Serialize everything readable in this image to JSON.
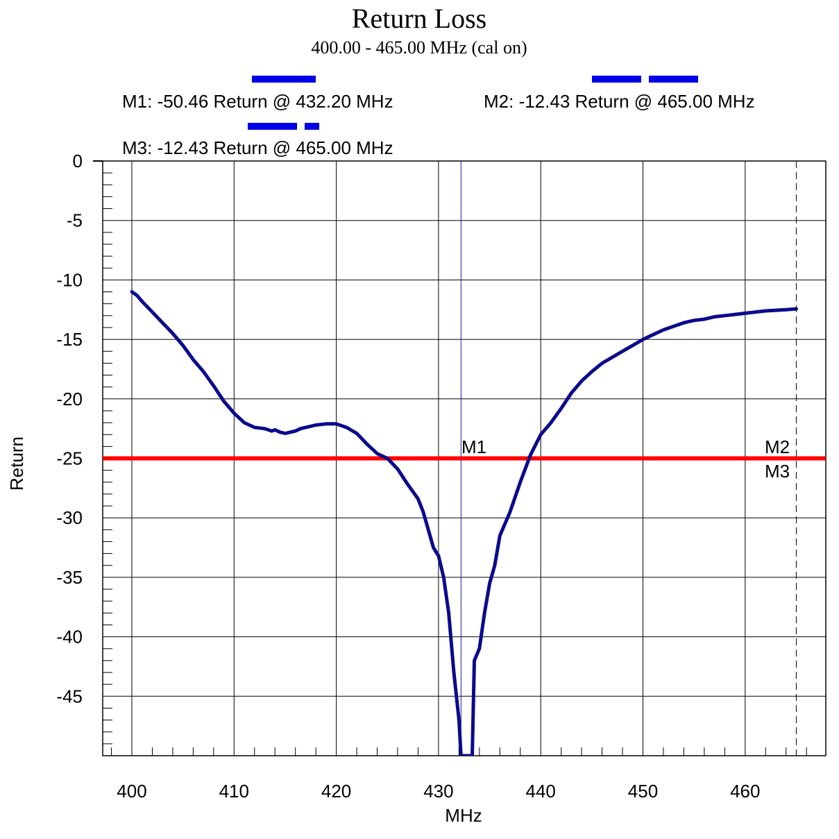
{
  "header": {
    "title": "Return Loss",
    "subtitle": "400.00 - 465.00 MHz (cal on)"
  },
  "markers": {
    "m1_readout": "M1: -50.46 Return @ 432.20 MHz",
    "m2_readout": "M2: -12.43 Return @ 465.00 MHz",
    "m3_readout": "M3: -12.43 Return @ 465.00 MHz",
    "m1_label": "M1",
    "m2_label": "M2",
    "m3_label": "M3"
  },
  "colors": {
    "trace": "#0a0a8c",
    "limit_line": "#ff0000",
    "marker_legend": "#0000e6",
    "grid": "#000000"
  },
  "chart_data": {
    "type": "line",
    "title": "Return Loss",
    "subtitle": "400.00 - 465.00 MHz (cal on)",
    "xlabel": "MHz",
    "ylabel": "Return",
    "xlim": [
      397,
      468
    ],
    "ylim": [
      -50,
      0
    ],
    "x_ticks": [
      400,
      410,
      420,
      430,
      440,
      450,
      460
    ],
    "y_ticks": [
      0,
      -5,
      -10,
      -15,
      -20,
      -25,
      -30,
      -35,
      -40,
      -45
    ],
    "grid": true,
    "limit_line": {
      "y": -25
    },
    "markers": [
      {
        "name": "M1",
        "x": 432.2,
        "y": -50.46
      },
      {
        "name": "M2",
        "x": 465.0,
        "y": -12.43
      },
      {
        "name": "M3",
        "x": 465.0,
        "y": -12.43
      }
    ],
    "series": [
      {
        "x": [
          400,
          400.5,
          401,
          402,
          403,
          404,
          405,
          406,
          407,
          408,
          409,
          410,
          411,
          412,
          413,
          413.7,
          414,
          414.5,
          415,
          415.5,
          416,
          416.5,
          417,
          418,
          419,
          420,
          421,
          422,
          423,
          424,
          425,
          426,
          427,
          428,
          428.5,
          429,
          429.5,
          430,
          430.5,
          431,
          431.5,
          432,
          432.2,
          433.3,
          433.5,
          434,
          434.5,
          435,
          435.5,
          436,
          437,
          438,
          439,
          440,
          441,
          442,
          443,
          444,
          445,
          446,
          447,
          448,
          449,
          450,
          451,
          452,
          453,
          454,
          455,
          456,
          457,
          458,
          459,
          460,
          461,
          462,
          463,
          464,
          465
        ],
        "y": [
          -11.0,
          -11.3,
          -11.8,
          -12.7,
          -13.6,
          -14.5,
          -15.5,
          -16.7,
          -17.7,
          -18.9,
          -20.2,
          -21.2,
          -22.0,
          -22.4,
          -22.5,
          -22.7,
          -22.6,
          -22.8,
          -22.9,
          -22.8,
          -22.7,
          -22.5,
          -22.4,
          -22.2,
          -22.1,
          -22.1,
          -22.4,
          -22.9,
          -23.8,
          -24.6,
          -25.0,
          -25.9,
          -27.2,
          -28.4,
          -29.5,
          -31.0,
          -32.5,
          -33.2,
          -35.0,
          -38.0,
          -43.0,
          -47.0,
          -50.0,
          -50.0,
          -42.0,
          -41.0,
          -38.0,
          -35.5,
          -34.0,
          -31.5,
          -29.5,
          -27.0,
          -24.7,
          -23.0,
          -22.0,
          -20.8,
          -19.5,
          -18.5,
          -17.7,
          -17.0,
          -16.5,
          -16.0,
          -15.5,
          -15.0,
          -14.6,
          -14.2,
          -13.9,
          -13.6,
          -13.4,
          -13.3,
          -13.1,
          -13.0,
          -12.9,
          -12.8,
          -12.7,
          -12.6,
          -12.55,
          -12.5,
          -12.43
        ]
      }
    ]
  }
}
